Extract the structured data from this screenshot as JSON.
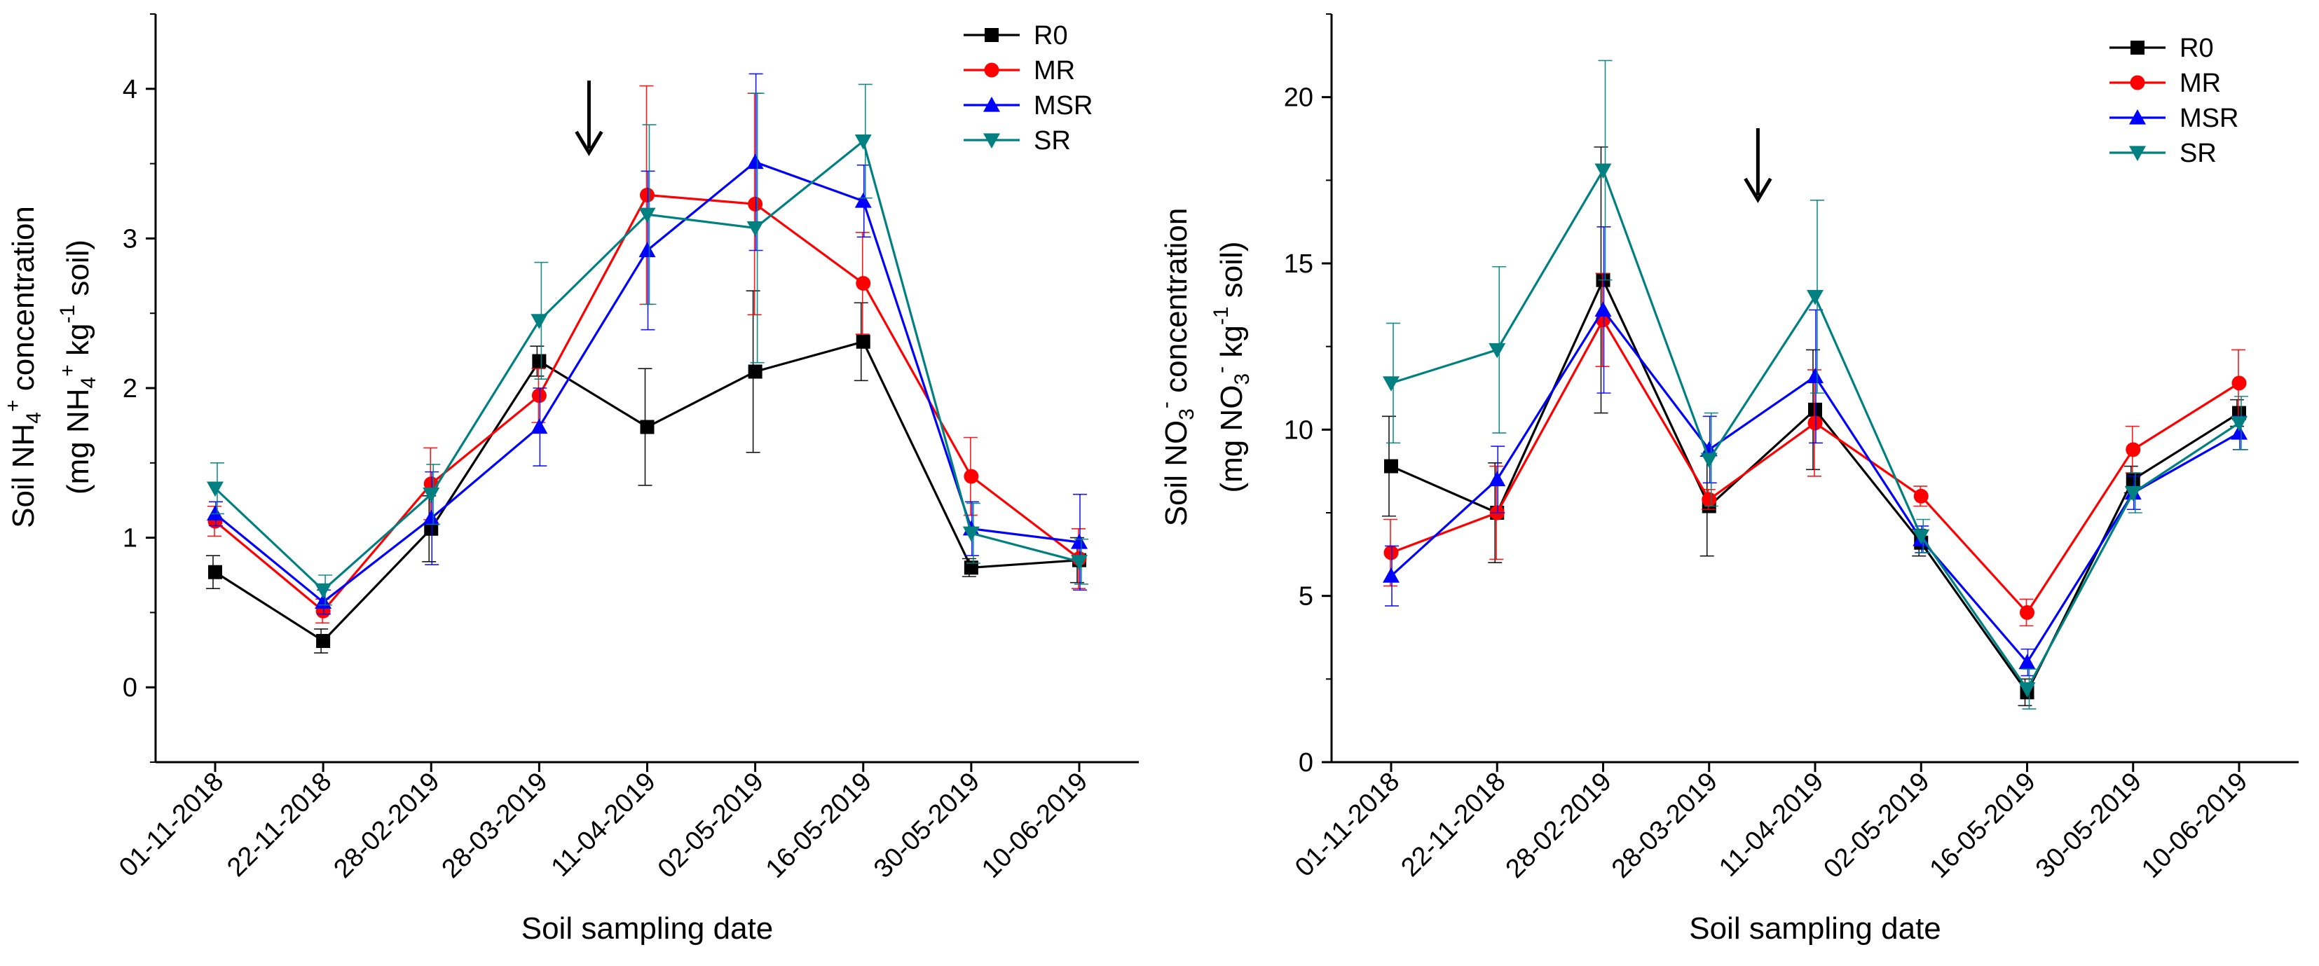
{
  "chart_data": [
    {
      "type": "line",
      "id": "nh4",
      "title": "",
      "xlabel": "Soil sampling date",
      "ylabel_line1": "Soil NH",
      "ylabel_line1_sub": "4",
      "ylabel_line1_sup": "+",
      "ylabel_line1_tail": " concentration",
      "ylabel_line2": "(mg NH",
      "ylabel_line2_sub": "4",
      "ylabel_line2_sup": "+",
      "ylabel_line2_mid": " kg",
      "ylabel_line2_sup2": "-1",
      "ylabel_line2_tail": " soil)",
      "categories": [
        "01-11-2018",
        "22-11-2018",
        "28-02-2019",
        "28-03-2019",
        "11-04-2019",
        "02-05-2019",
        "16-05-2019",
        "30-05-2019",
        "10-06-2019"
      ],
      "ylim": [
        -0.5,
        4.5
      ],
      "yticks": [
        0,
        1,
        2,
        3,
        4
      ],
      "arrow_between": [
        3,
        4
      ],
      "arrow_symbol": "↓",
      "legend_position": "top-right",
      "series": [
        {
          "name": "R0",
          "color": "#000000",
          "marker": "square",
          "values": [
            0.77,
            0.31,
            1.06,
            2.18,
            1.74,
            2.11,
            2.31,
            0.8,
            0.85
          ],
          "errors": [
            0.11,
            0.08,
            0.22,
            0.1,
            0.39,
            0.54,
            0.26,
            0.06,
            0.15
          ]
        },
        {
          "name": "MR",
          "color": "#ff0000",
          "marker": "circle",
          "values": [
            1.11,
            0.51,
            1.36,
            1.95,
            3.29,
            3.23,
            2.7,
            1.41,
            0.86
          ],
          "errors": [
            0.1,
            0.08,
            0.24,
            0.18,
            0.73,
            0.74,
            0.34,
            0.26,
            0.2
          ]
        },
        {
          "name": "MSR",
          "color": "#0000ff",
          "marker": "triangle-up",
          "values": [
            1.16,
            0.57,
            1.13,
            1.74,
            2.92,
            3.51,
            3.25,
            1.06,
            0.97
          ],
          "errors": [
            0.08,
            0.08,
            0.31,
            0.26,
            0.53,
            0.59,
            0.24,
            0.18,
            0.32
          ]
        },
        {
          "name": "SR",
          "color": "#008080",
          "marker": "triangle-down",
          "values": [
            1.33,
            0.65,
            1.29,
            2.45,
            3.16,
            3.07,
            3.65,
            1.03,
            0.84
          ],
          "errors": [
            0.17,
            0.1,
            0.2,
            0.39,
            0.6,
            0.9,
            0.38,
            0.2,
            0.15
          ]
        }
      ]
    },
    {
      "type": "line",
      "id": "no3",
      "title": "",
      "xlabel": "Soil sampling date",
      "ylabel_line1": "Soil NO",
      "ylabel_line1_sub": "3",
      "ylabel_line1_sup": "-",
      "ylabel_line1_tail": " concentration",
      "ylabel_line2": "(mg NO",
      "ylabel_line2_sub": "3",
      "ylabel_line2_sup": "-",
      "ylabel_line2_mid": " kg",
      "ylabel_line2_sup2": "-1",
      "ylabel_line2_tail": " soil)",
      "categories": [
        "01-11-2018",
        "22-11-2018",
        "28-02-2019",
        "28-03-2019",
        "11-04-2019",
        "02-05-2019",
        "16-05-2019",
        "30-05-2019",
        "10-06-2019"
      ],
      "ylim": [
        0,
        22.5
      ],
      "yticks": [
        0,
        5,
        10,
        15,
        20
      ],
      "arrow_between": [
        3,
        4
      ],
      "arrow_symbol": "↓",
      "legend_position": "top-right",
      "series": [
        {
          "name": "R0",
          "color": "#000000",
          "marker": "square",
          "values": [
            8.9,
            7.5,
            14.5,
            7.7,
            10.6,
            6.6,
            2.1,
            8.5,
            10.5
          ],
          "errors": [
            1.5,
            1.5,
            4.0,
            1.5,
            1.8,
            0.4,
            0.4,
            0.4,
            0.4
          ]
        },
        {
          "name": "MR",
          "color": "#ff0000",
          "marker": "circle",
          "values": [
            6.3,
            7.5,
            13.3,
            7.9,
            10.2,
            8.0,
            4.5,
            9.4,
            11.4
          ],
          "errors": [
            1.0,
            1.4,
            1.4,
            0.3,
            1.6,
            0.3,
            0.4,
            0.7,
            1.0
          ]
        },
        {
          "name": "MSR",
          "color": "#0000ff",
          "marker": "triangle-up",
          "values": [
            5.6,
            8.5,
            13.6,
            9.4,
            11.6,
            6.7,
            3.0,
            8.1,
            9.9
          ],
          "errors": [
            0.9,
            1.0,
            2.5,
            1.0,
            2.0,
            0.4,
            0.4,
            0.5,
            0.5
          ]
        },
        {
          "name": "SR",
          "color": "#008080",
          "marker": "triangle-down",
          "values": [
            11.4,
            12.4,
            17.8,
            9.1,
            14.0,
            6.8,
            2.2,
            8.1,
            10.2
          ],
          "errors": [
            1.8,
            2.5,
            3.3,
            1.4,
            2.9,
            0.5,
            0.6,
            0.6,
            0.8
          ]
        }
      ]
    }
  ]
}
